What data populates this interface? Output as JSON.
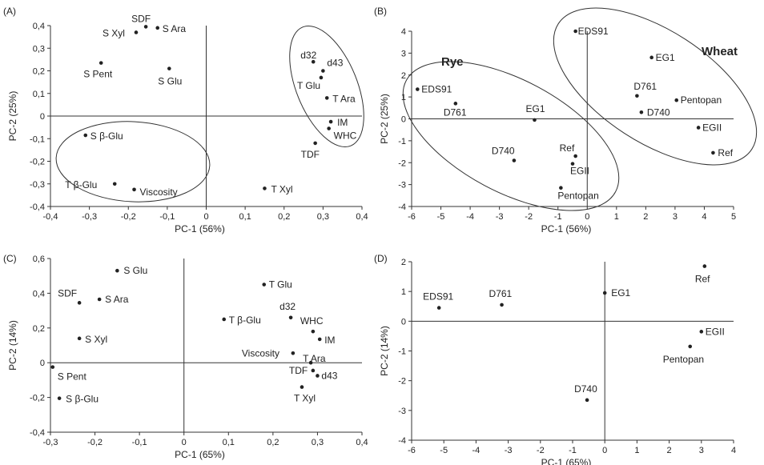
{
  "chart_data": [
    {
      "type": "scatter",
      "panel": "(A)",
      "xlabel": "PC-1 (56%)",
      "ylabel": "PC-2 (25%)",
      "xlim": [
        -0.4,
        0.4
      ],
      "ylim": [
        -0.4,
        0.4
      ],
      "xticks": [
        "-0,4",
        "-0,3",
        "-0,2",
        "-0,1",
        "0",
        "0,1",
        "0,2",
        "0,3",
        "0,4"
      ],
      "yticks": [
        "0,4",
        "0,3",
        "0,2",
        "0,1",
        "0",
        "-0,1",
        "-0,2",
        "-0,3",
        "-0,4"
      ],
      "points": [
        {
          "label": "SDF",
          "x": -0.155,
          "y": 0.395
        },
        {
          "label": "S Ara",
          "x": -0.125,
          "y": 0.39
        },
        {
          "label": "S Xyl",
          "x": -0.18,
          "y": 0.37
        },
        {
          "label": "S Pent",
          "x": -0.27,
          "y": 0.235
        },
        {
          "label": "S Glu",
          "x": -0.095,
          "y": 0.21
        },
        {
          "label": "d32",
          "x": 0.275,
          "y": 0.24
        },
        {
          "label": "d43",
          "x": 0.3,
          "y": 0.2
        },
        {
          "label": "T Glu",
          "x": 0.295,
          "y": 0.17
        },
        {
          "label": "T Ara",
          "x": 0.31,
          "y": 0.08
        },
        {
          "label": "IM",
          "x": 0.32,
          "y": -0.025
        },
        {
          "label": "WHC",
          "x": 0.315,
          "y": -0.055
        },
        {
          "label": "TDF",
          "x": 0.28,
          "y": -0.12
        },
        {
          "label": "S β-Glu",
          "x": -0.31,
          "y": -0.085
        },
        {
          "label": "T β-Glu",
          "x": -0.235,
          "y": -0.3
        },
        {
          "label": "Viscosity",
          "x": -0.185,
          "y": -0.325
        },
        {
          "label": "T Xyl",
          "x": 0.15,
          "y": -0.32
        }
      ]
    },
    {
      "type": "scatter",
      "panel": "(B)",
      "xlabel": "PC-1 (56%)",
      "ylabel": "PC-2 (25%)",
      "xlim": [
        -6,
        5
      ],
      "ylim": [
        -4,
        4
      ],
      "xticks": [
        "-6",
        "-5",
        "-4",
        "-3",
        "-2",
        "-1",
        "0",
        "1",
        "2",
        "3",
        "4",
        "5"
      ],
      "yticks": [
        "4",
        "3",
        "2",
        "1",
        "0",
        "-1",
        "-2",
        "-3",
        "-4"
      ],
      "groups": [
        "Rye",
        "Wheat"
      ],
      "points": [
        {
          "label": "EDS91",
          "x": -5.8,
          "y": 1.35,
          "group": "Rye"
        },
        {
          "label": "D761",
          "x": -4.5,
          "y": 0.7,
          "group": "Rye"
        },
        {
          "label": "EG1",
          "x": -1.8,
          "y": -0.05,
          "group": "Rye"
        },
        {
          "label": "D740",
          "x": -2.5,
          "y": -1.9,
          "group": "Rye"
        },
        {
          "label": "Ref",
          "x": -0.4,
          "y": -1.7,
          "group": "Rye"
        },
        {
          "label": "EGII",
          "x": -0.5,
          "y": -2.05,
          "group": "Rye"
        },
        {
          "label": "Pentopan",
          "x": -0.9,
          "y": -3.15,
          "group": "Rye"
        },
        {
          "label": "EDS91",
          "x": -0.4,
          "y": 4.0,
          "group": "Wheat"
        },
        {
          "label": "EG1",
          "x": 2.2,
          "y": 2.8,
          "group": "Wheat"
        },
        {
          "label": "D761",
          "x": 1.7,
          "y": 1.05,
          "group": "Wheat"
        },
        {
          "label": "Pentopan",
          "x": 3.05,
          "y": 0.85,
          "group": "Wheat"
        },
        {
          "label": "D740",
          "x": 1.85,
          "y": 0.3,
          "group": "Wheat"
        },
        {
          "label": "EGII",
          "x": 3.8,
          "y": -0.4,
          "group": "Wheat"
        },
        {
          "label": "Ref",
          "x": 4.3,
          "y": -1.55,
          "group": "Wheat"
        }
      ]
    },
    {
      "type": "scatter",
      "panel": "(C)",
      "xlabel": "PC-1 (65%)",
      "ylabel": "PC-2 (14%)",
      "xlim": [
        -0.3,
        0.4
      ],
      "ylim": [
        -0.4,
        0.6
      ],
      "xticks": [
        "-0,3",
        "-0,2",
        "-0,1",
        "0",
        "0,1",
        "0,2",
        "0,3",
        "0,4"
      ],
      "yticks": [
        "0,6",
        "0,4",
        "0,2",
        "0",
        "-0,2",
        "-0,4"
      ],
      "points": [
        {
          "label": "S Glu",
          "x": -0.15,
          "y": 0.53
        },
        {
          "label": "SDF",
          "x": -0.235,
          "y": 0.345
        },
        {
          "label": "S Ara",
          "x": -0.19,
          "y": 0.365
        },
        {
          "label": "S Xyl",
          "x": -0.235,
          "y": 0.14
        },
        {
          "label": "S Pent",
          "x": -0.295,
          "y": -0.025
        },
        {
          "label": "S β-Glu",
          "x": -0.28,
          "y": -0.205
        },
        {
          "label": "T Glu",
          "x": 0.18,
          "y": 0.45
        },
        {
          "label": "T β-Glu",
          "x": 0.09,
          "y": 0.25
        },
        {
          "label": "d32",
          "x": 0.24,
          "y": 0.26
        },
        {
          "label": "WHC",
          "x": 0.29,
          "y": 0.18
        },
        {
          "label": "IM",
          "x": 0.305,
          "y": 0.135
        },
        {
          "label": "Viscosity",
          "x": 0.245,
          "y": 0.055
        },
        {
          "label": "T Ara",
          "x": 0.285,
          "y": 0.0
        },
        {
          "label": "TDF",
          "x": 0.29,
          "y": -0.045
        },
        {
          "label": "d43",
          "x": 0.3,
          "y": -0.075
        },
        {
          "label": "T Xyl",
          "x": 0.265,
          "y": -0.14
        }
      ]
    },
    {
      "type": "scatter",
      "panel": "(D)",
      "xlabel": "PC-1 (65%)",
      "ylabel": "PC-2 (14%)",
      "xlim": [
        -6,
        4
      ],
      "ylim": [
        -4,
        2
      ],
      "xticks": [
        "-6",
        "-5",
        "-4",
        "-3",
        "-2",
        "-1",
        "0",
        "1",
        "2",
        "3",
        "4"
      ],
      "yticks": [
        "2",
        "1",
        "0",
        "-1",
        "-2",
        "-3",
        "-4"
      ],
      "points": [
        {
          "label": "EDS91",
          "x": -5.15,
          "y": 0.45
        },
        {
          "label": "D761",
          "x": -3.2,
          "y": 0.55
        },
        {
          "label": "EG1",
          "x": 0.0,
          "y": 0.95
        },
        {
          "label": "Ref",
          "x": 3.1,
          "y": 1.85
        },
        {
          "label": "EGII",
          "x": 3.0,
          "y": -0.35
        },
        {
          "label": "Pentopan",
          "x": 2.65,
          "y": -0.85
        },
        {
          "label": "D740",
          "x": -0.55,
          "y": -2.65
        }
      ]
    }
  ]
}
